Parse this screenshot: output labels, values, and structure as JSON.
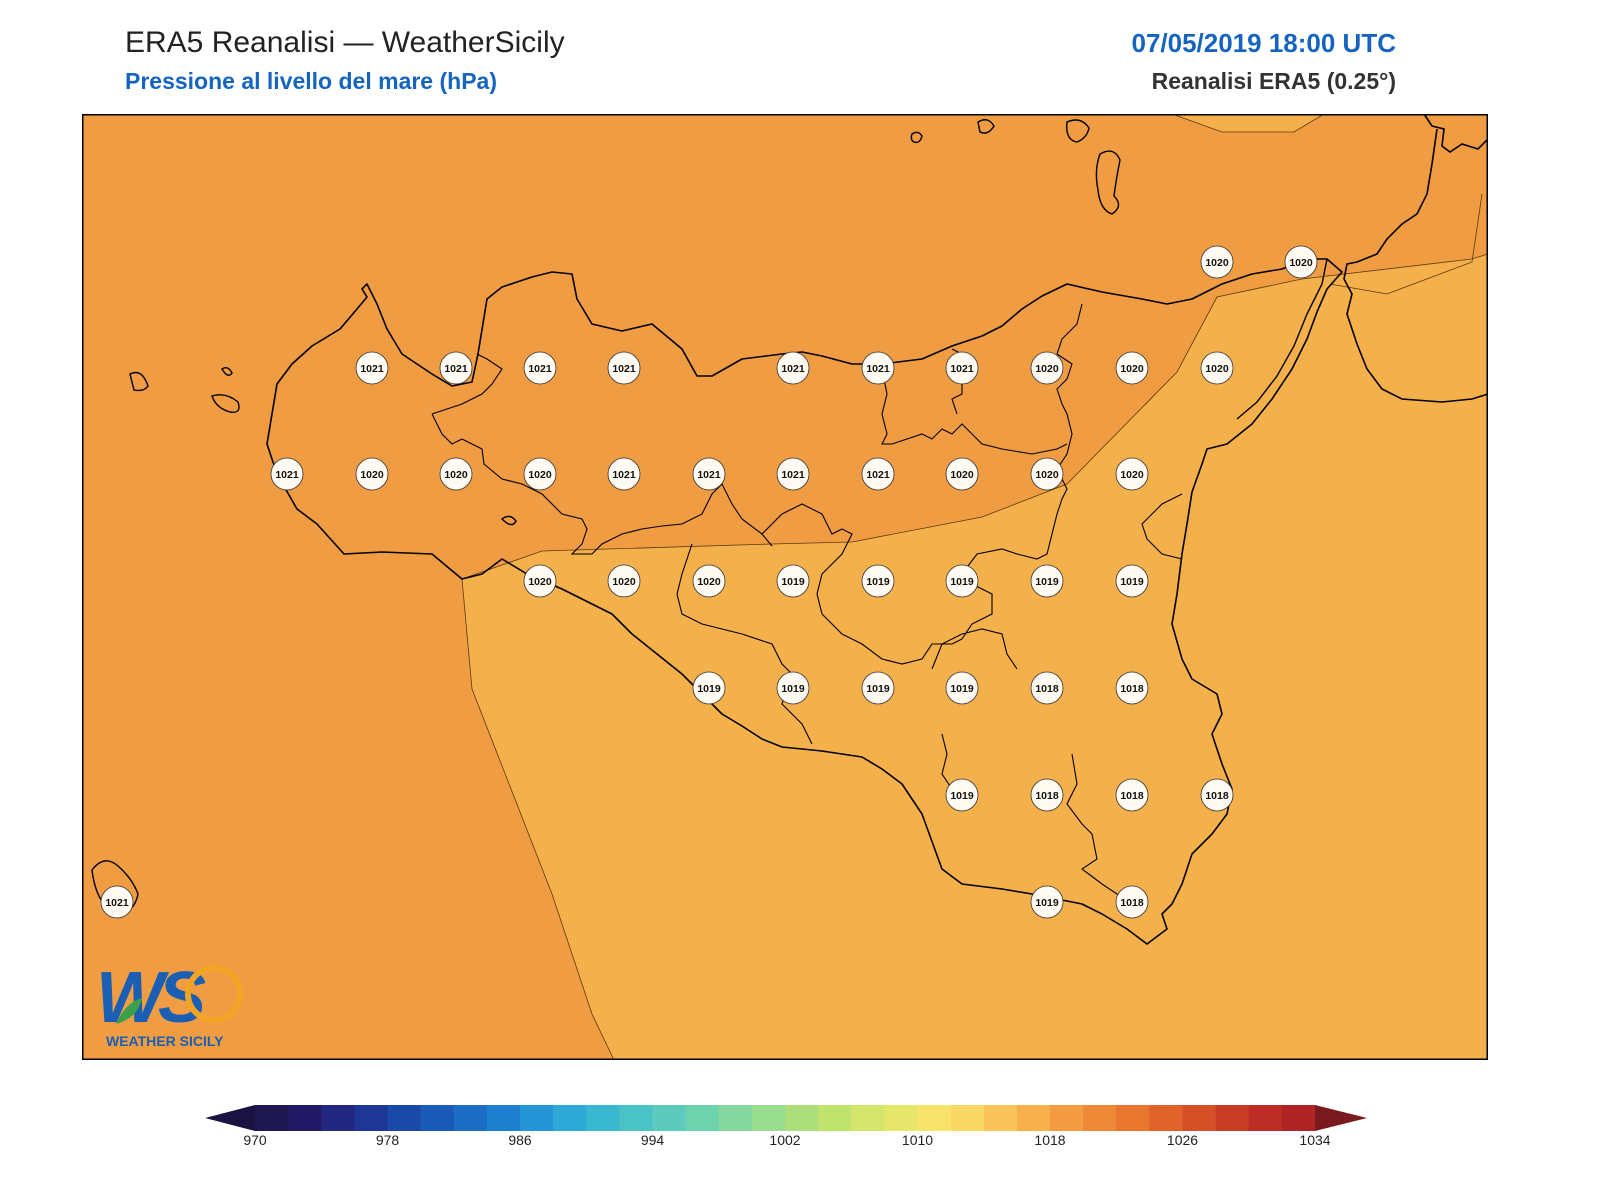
{
  "header": {
    "title": "ERA5 Reanalisi — WeatherSicily",
    "subtitle": "Pressione al livello del mare (hPa)",
    "datetime": "07/05/2019 18:00 UTC",
    "source": "Reanalisi ERA5 (0.25°)"
  },
  "logo": {
    "mark": "WS",
    "text": "WEATHER SICILY",
    "colors": {
      "blue": "#1a5fb4",
      "orange": "#f2a524",
      "green": "#3aa14a"
    }
  },
  "colors": {
    "band_1020": "#f09c42",
    "band_1018": "#f4b04a",
    "coast": "#000000",
    "marker_fill": "#fffaf2"
  },
  "map_data": {
    "variable": "mslp",
    "units": "hPa",
    "band_colors_labelled": [
      "1020-1022 orange",
      "1018-1020 light orange"
    ],
    "rows": [
      {
        "values": [
          null,
          null,
          null,
          null,
          null,
          null,
          null,
          null,
          null,
          null,
          null,
          null,
          null,
          1020,
          1020
        ],
        "note": ""
      },
      {
        "values": [
          1021,
          1021,
          1021,
          1021,
          1021,
          1021,
          1021,
          1020,
          1020,
          1020
        ]
      },
      {
        "values": [
          1021,
          1020,
          1020,
          1020,
          1021,
          1021,
          1021,
          1021,
          1020,
          1020,
          1020
        ]
      },
      {
        "values": [
          1020,
          1020,
          1020,
          1019,
          1019,
          1019,
          1019,
          1019
        ]
      },
      {
        "values": [
          1019,
          1019,
          1019,
          1019,
          1018,
          1018
        ]
      },
      {
        "values": [
          1019,
          1018,
          1018,
          1018
        ]
      },
      {
        "values": [
          1021,
          1019,
          1018
        ]
      }
    ],
    "labels": [
      {
        "id": "p1",
        "value": "1020"
      },
      {
        "id": "p2",
        "value": "1020"
      },
      {
        "id": "p3",
        "value": "1021"
      },
      {
        "id": "p4",
        "value": "1021"
      },
      {
        "id": "p5",
        "value": "1021"
      },
      {
        "id": "p6",
        "value": "1021"
      },
      {
        "id": "p7",
        "value": "1021"
      },
      {
        "id": "p8",
        "value": "1021"
      },
      {
        "id": "p9",
        "value": "1021"
      },
      {
        "id": "p10",
        "value": "1020"
      },
      {
        "id": "p11",
        "value": "1020"
      },
      {
        "id": "p12",
        "value": "1020"
      },
      {
        "id": "p13",
        "value": "1021"
      },
      {
        "id": "p14",
        "value": "1020"
      },
      {
        "id": "p15",
        "value": "1020"
      },
      {
        "id": "p16",
        "value": "1020"
      },
      {
        "id": "p17",
        "value": "1021"
      },
      {
        "id": "p18",
        "value": "1021"
      },
      {
        "id": "p19",
        "value": "1021"
      },
      {
        "id": "p20",
        "value": "1021"
      },
      {
        "id": "p21",
        "value": "1020"
      },
      {
        "id": "p22",
        "value": "1020"
      },
      {
        "id": "p23",
        "value": "1020"
      },
      {
        "id": "p24",
        "value": "1020"
      },
      {
        "id": "p25",
        "value": "1020"
      },
      {
        "id": "p26",
        "value": "1020"
      },
      {
        "id": "p27",
        "value": "1019"
      },
      {
        "id": "p28",
        "value": "1019"
      },
      {
        "id": "p29",
        "value": "1019"
      },
      {
        "id": "p30",
        "value": "1019"
      },
      {
        "id": "p31",
        "value": "1019"
      },
      {
        "id": "p32",
        "value": "1019"
      },
      {
        "id": "p33",
        "value": "1019"
      },
      {
        "id": "p34",
        "value": "1019"
      },
      {
        "id": "p35",
        "value": "1019"
      },
      {
        "id": "p36",
        "value": "1018"
      },
      {
        "id": "p37",
        "value": "1018"
      },
      {
        "id": "p38",
        "value": "1019"
      },
      {
        "id": "p39",
        "value": "1018"
      },
      {
        "id": "p40",
        "value": "1018"
      },
      {
        "id": "p41",
        "value": "1018"
      },
      {
        "id": "p42",
        "value": "1021"
      },
      {
        "id": "p43",
        "value": "1019"
      },
      {
        "id": "p44",
        "value": "1018"
      }
    ]
  },
  "colorbar": {
    "tick_labels": [
      "970",
      "978",
      "986",
      "994",
      "1002",
      "1010",
      "1018",
      "1026",
      "1034"
    ],
    "swatches": [
      "#1f1750",
      "#221a66",
      "#232780",
      "#1e3794",
      "#1a4aa8",
      "#1a5bb8",
      "#1b6dc6",
      "#1f80cf",
      "#2594d4",
      "#2ea8d5",
      "#3ab8cf",
      "#4ac3c6",
      "#5ccbbb",
      "#6ed2ad",
      "#84d89f",
      "#99dd8e",
      "#acdf7c",
      "#c0e36b",
      "#d4e66b",
      "#e6e66c",
      "#f8e46a",
      "#fad865",
      "#f9c55a",
      "#f6b04c",
      "#f39c41",
      "#ee8937",
      "#e8762f",
      "#e06329",
      "#d54f27",
      "#c83d26",
      "#bc2d26",
      "#b02425"
    ],
    "extend_low_color": "#1a1240",
    "extend_high_color": "#7a1a1e"
  }
}
